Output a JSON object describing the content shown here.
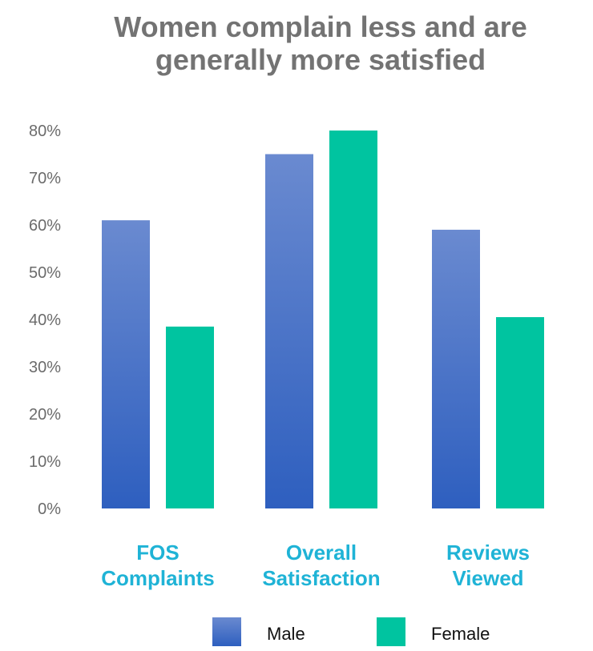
{
  "chart_data": {
    "type": "bar",
    "title_lines": [
      "Women complain less and are",
      "generally more satisfied"
    ],
    "categories": [
      [
        "FOS",
        "Complaints"
      ],
      [
        "Overall",
        "Satisfaction"
      ],
      [
        "Reviews",
        "Viewed"
      ]
    ],
    "series": [
      {
        "name": "Male",
        "values": [
          61,
          75,
          59
        ]
      },
      {
        "name": "Female",
        "values": [
          38.5,
          80,
          40.5
        ]
      }
    ],
    "y_ticks": [
      "0%",
      "10%",
      "20%",
      "30%",
      "40%",
      "50%",
      "60%",
      "70%",
      "80%"
    ],
    "ylim": [
      0,
      80
    ],
    "grid": false,
    "legend_position": "bottom-center",
    "colors": {
      "male_top": "#6a8ad0",
      "male_bottom": "#2e5fbf",
      "female": "#00c4a0",
      "title": "#737373",
      "tick": "#6b6b6b",
      "category": "#1fb3d6"
    }
  }
}
